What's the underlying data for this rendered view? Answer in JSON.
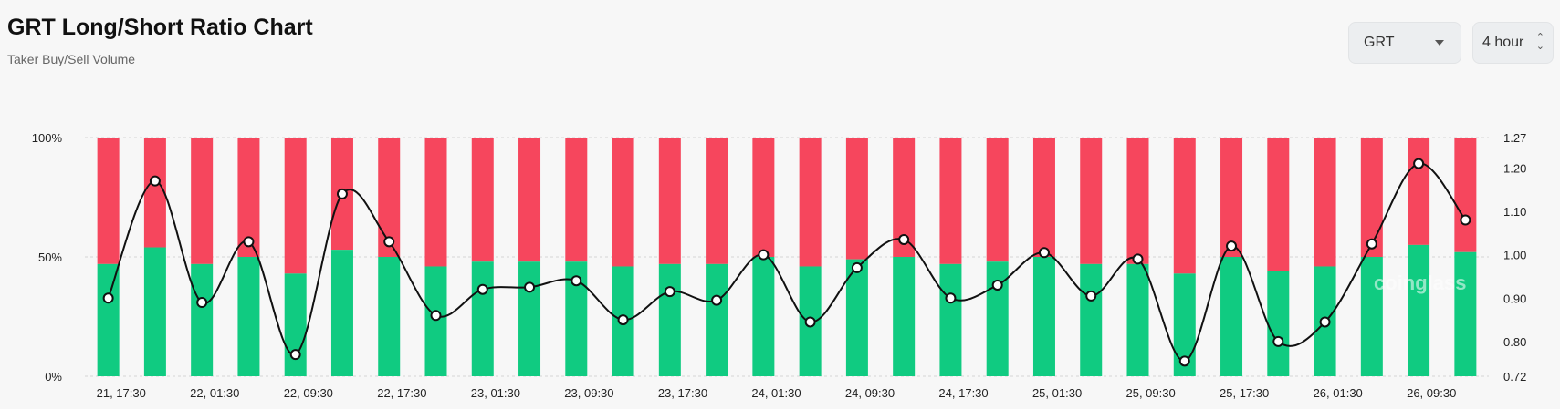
{
  "header": {
    "title": "GRT Long/Short Ratio Chart",
    "subtitle": "Taker Buy/Sell Volume"
  },
  "controls": {
    "symbol": "GRT",
    "interval": "4 hour"
  },
  "watermark": "coinglass",
  "colors": {
    "long": "#10cb81",
    "short": "#f6465d",
    "line": "#111111"
  },
  "chart_data": {
    "type": "bar",
    "stacked_percent": true,
    "categories": [
      "21, 17:30",
      "",
      "22, 01:30",
      "",
      "22, 09:30",
      "",
      "22, 17:30",
      "",
      "23, 01:30",
      "",
      "23, 09:30",
      "",
      "23, 17:30",
      "",
      "24, 01:30",
      "",
      "24, 09:30",
      "",
      "24, 17:30",
      "",
      "25, 01:30",
      "",
      "25, 09:30",
      "",
      "25, 17:30",
      "",
      "26, 01:30",
      "",
      "26, 09:30",
      ""
    ],
    "series": [
      {
        "values": [
          47,
          54,
          47,
          50,
          43,
          53,
          50,
          46,
          48,
          48,
          48,
          46,
          47,
          47,
          50,
          46,
          49,
          50,
          47,
          48,
          50,
          47,
          47,
          43,
          50,
          44,
          46,
          50,
          55,
          52
        ]
      },
      {
        "values": [
          53,
          46,
          53,
          50,
          57,
          47,
          50,
          54,
          52,
          52,
          52,
          54,
          53,
          53,
          50,
          54,
          51,
          50,
          53,
          52,
          50,
          53,
          53,
          57,
          50,
          56,
          54,
          50,
          45,
          48
        ]
      },
      {
        "type": "line",
        "axis": "right",
        "values": [
          0.9,
          1.17,
          0.89,
          1.03,
          0.77,
          1.14,
          1.03,
          0.86,
          0.92,
          0.925,
          0.94,
          0.85,
          0.915,
          0.895,
          1.0,
          0.845,
          0.97,
          1.035,
          0.9,
          0.93,
          1.005,
          0.905,
          0.99,
          0.755,
          1.02,
          0.8,
          0.845,
          1.025,
          1.21,
          1.08
        ]
      }
    ],
    "y_left": {
      "ticks": [
        "0%",
        "50%",
        "100%"
      ],
      "range": [
        0,
        100
      ]
    },
    "y_right": {
      "ticks": [
        "0.72",
        "0.80",
        "0.90",
        "1.00",
        "1.10",
        "1.20",
        "1.27"
      ],
      "range": [
        0.72,
        1.27
      ]
    },
    "grid": true
  }
}
